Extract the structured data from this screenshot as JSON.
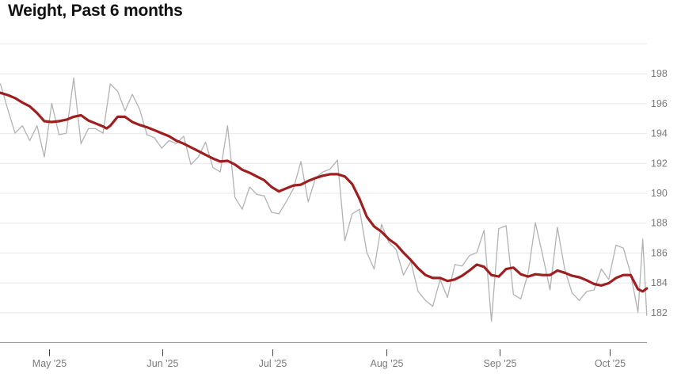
{
  "page": {
    "title": "Weight, Past 6 months"
  },
  "chart_data": {
    "type": "line",
    "title": "Weight, Past 6 months",
    "x_unit": "day_index",
    "x_axis": {
      "ticks": [
        {
          "day": 13.3,
          "label": "May '25"
        },
        {
          "day": 44.3,
          "label": "Jun '25"
        },
        {
          "day": 74.3,
          "label": "Jul '25"
        },
        {
          "day": 105.3,
          "label": "Aug '25"
        },
        {
          "day": 136.3,
          "label": "Sep '25"
        },
        {
          "day": 166.3,
          "label": "Oct '25"
        }
      ]
    },
    "y_axis": {
      "side": "right",
      "lim": [
        180,
        200
      ],
      "ticks": [
        182,
        184,
        186,
        188,
        190,
        192,
        194,
        196,
        198
      ]
    },
    "grid": "horizontal",
    "legend": "none",
    "series": [
      {
        "name": "daily weight",
        "color": "#b2b2b2",
        "stroke_width": 1.3,
        "points": [
          [
            0,
            197.3
          ],
          [
            2,
            195.6
          ],
          [
            4,
            194.0
          ],
          [
            6,
            194.5
          ],
          [
            8,
            193.5
          ],
          [
            10,
            194.5
          ],
          [
            12,
            192.4
          ],
          [
            14,
            196.0
          ],
          [
            16,
            193.9
          ],
          [
            18,
            194.0
          ],
          [
            20,
            197.7
          ],
          [
            22,
            193.3
          ],
          [
            24,
            194.3
          ],
          [
            26,
            194.3
          ],
          [
            28,
            194.0
          ],
          [
            30,
            197.3
          ],
          [
            32,
            196.8
          ],
          [
            34,
            195.5
          ],
          [
            36,
            196.6
          ],
          [
            38,
            195.6
          ],
          [
            40,
            193.9
          ],
          [
            42,
            193.7
          ],
          [
            44,
            193.0
          ],
          [
            46,
            193.5
          ],
          [
            48,
            193.3
          ],
          [
            50,
            193.8
          ],
          [
            52,
            191.9
          ],
          [
            54,
            192.4
          ],
          [
            56,
            193.4
          ],
          [
            58,
            191.7
          ],
          [
            60,
            191.4
          ],
          [
            62,
            194.5
          ],
          [
            64,
            189.7
          ],
          [
            66,
            188.9
          ],
          [
            68,
            190.4
          ],
          [
            70,
            189.9
          ],
          [
            72,
            189.8
          ],
          [
            74,
            188.7
          ],
          [
            76,
            188.6
          ],
          [
            78,
            189.4
          ],
          [
            80,
            190.3
          ],
          [
            82,
            192.1
          ],
          [
            84,
            189.4
          ],
          [
            86,
            191.0
          ],
          [
            88,
            191.4
          ],
          [
            90,
            191.6
          ],
          [
            92,
            192.2
          ],
          [
            94,
            186.8
          ],
          [
            96,
            188.6
          ],
          [
            98,
            188.9
          ],
          [
            100,
            186.0
          ],
          [
            102,
            184.9
          ],
          [
            104,
            187.9
          ],
          [
            106,
            186.7
          ],
          [
            108,
            186.2
          ],
          [
            110,
            184.5
          ],
          [
            112,
            185.4
          ],
          [
            114,
            183.4
          ],
          [
            116,
            182.8
          ],
          [
            118,
            182.4
          ],
          [
            120,
            184.2
          ],
          [
            122,
            183.0
          ],
          [
            124,
            185.2
          ],
          [
            126,
            185.1
          ],
          [
            128,
            185.8
          ],
          [
            130,
            186.0
          ],
          [
            132,
            187.5
          ],
          [
            134,
            181.4
          ],
          [
            136,
            187.6
          ],
          [
            138,
            187.8
          ],
          [
            140,
            183.2
          ],
          [
            142,
            182.9
          ],
          [
            144,
            184.6
          ],
          [
            146,
            188.0
          ],
          [
            148,
            185.8
          ],
          [
            150,
            183.5
          ],
          [
            152,
            187.7
          ],
          [
            154,
            184.9
          ],
          [
            156,
            183.3
          ],
          [
            158,
            182.8
          ],
          [
            160,
            183.4
          ],
          [
            162,
            183.5
          ],
          [
            164,
            184.9
          ],
          [
            166,
            184.2
          ],
          [
            168,
            186.5
          ],
          [
            170,
            186.3
          ],
          [
            172,
            184.6
          ],
          [
            174,
            182.0
          ],
          [
            175.3,
            186.9
          ],
          [
            176.4,
            181.8
          ]
        ]
      },
      {
        "name": "smoothed trend",
        "color": "#9e1f1f",
        "stroke_width": 3.2,
        "points": [
          [
            0,
            196.7
          ],
          [
            2,
            196.55
          ],
          [
            4,
            196.35
          ],
          [
            6,
            196.05
          ],
          [
            8,
            195.8
          ],
          [
            10,
            195.35
          ],
          [
            12,
            194.8
          ],
          [
            14,
            194.75
          ],
          [
            16,
            194.8
          ],
          [
            18,
            194.9
          ],
          [
            20,
            195.1
          ],
          [
            22,
            195.2
          ],
          [
            24,
            194.85
          ],
          [
            26,
            194.65
          ],
          [
            28,
            194.45
          ],
          [
            29,
            194.32
          ],
          [
            30,
            194.5
          ],
          [
            32,
            195.1
          ],
          [
            34,
            195.1
          ],
          [
            36,
            194.75
          ],
          [
            38,
            194.55
          ],
          [
            40,
            194.4
          ],
          [
            42,
            194.2
          ],
          [
            44,
            194.0
          ],
          [
            46,
            193.8
          ],
          [
            48,
            193.5
          ],
          [
            50,
            193.3
          ],
          [
            52,
            193.05
          ],
          [
            54,
            192.8
          ],
          [
            56,
            192.55
          ],
          [
            58,
            192.3
          ],
          [
            60,
            192.1
          ],
          [
            62,
            192.15
          ],
          [
            64,
            191.9
          ],
          [
            66,
            191.55
          ],
          [
            68,
            191.35
          ],
          [
            70,
            191.1
          ],
          [
            72,
            190.85
          ],
          [
            74,
            190.4
          ],
          [
            76,
            190.1
          ],
          [
            78,
            190.3
          ],
          [
            80,
            190.5
          ],
          [
            82,
            190.55
          ],
          [
            84,
            190.8
          ],
          [
            86,
            191.0
          ],
          [
            88,
            191.15
          ],
          [
            90,
            191.25
          ],
          [
            92,
            191.25
          ],
          [
            94,
            191.1
          ],
          [
            96,
            190.6
          ],
          [
            98,
            189.6
          ],
          [
            100,
            188.4
          ],
          [
            102,
            187.75
          ],
          [
            104,
            187.4
          ],
          [
            106,
            186.9
          ],
          [
            108,
            186.55
          ],
          [
            110,
            186.0
          ],
          [
            112,
            185.5
          ],
          [
            114,
            184.95
          ],
          [
            116,
            184.5
          ],
          [
            118,
            184.3
          ],
          [
            120,
            184.3
          ],
          [
            122,
            184.1
          ],
          [
            124,
            184.2
          ],
          [
            126,
            184.45
          ],
          [
            128,
            184.8
          ],
          [
            130,
            185.2
          ],
          [
            132,
            185.05
          ],
          [
            134,
            184.5
          ],
          [
            136,
            184.4
          ],
          [
            138,
            184.9
          ],
          [
            140,
            185.0
          ],
          [
            142,
            184.55
          ],
          [
            144,
            184.4
          ],
          [
            146,
            184.55
          ],
          [
            148,
            184.5
          ],
          [
            150,
            184.5
          ],
          [
            152,
            184.8
          ],
          [
            154,
            184.65
          ],
          [
            156,
            184.45
          ],
          [
            158,
            184.35
          ],
          [
            160,
            184.15
          ],
          [
            162,
            183.9
          ],
          [
            164,
            183.8
          ],
          [
            166,
            183.95
          ],
          [
            168,
            184.3
          ],
          [
            170,
            184.5
          ],
          [
            172,
            184.5
          ],
          [
            174,
            183.55
          ],
          [
            175.3,
            183.4
          ],
          [
            176.4,
            183.6
          ]
        ]
      }
    ]
  },
  "colors": {
    "background": "#ffffff",
    "gridline": "#e8e8e8",
    "axis_line": "#999999",
    "tick_mark": "#444444",
    "axis_text": "#7a7a7a",
    "title_text": "#111111",
    "daily_series": "#b2b2b2",
    "trend_series": "#9e1f1f"
  }
}
